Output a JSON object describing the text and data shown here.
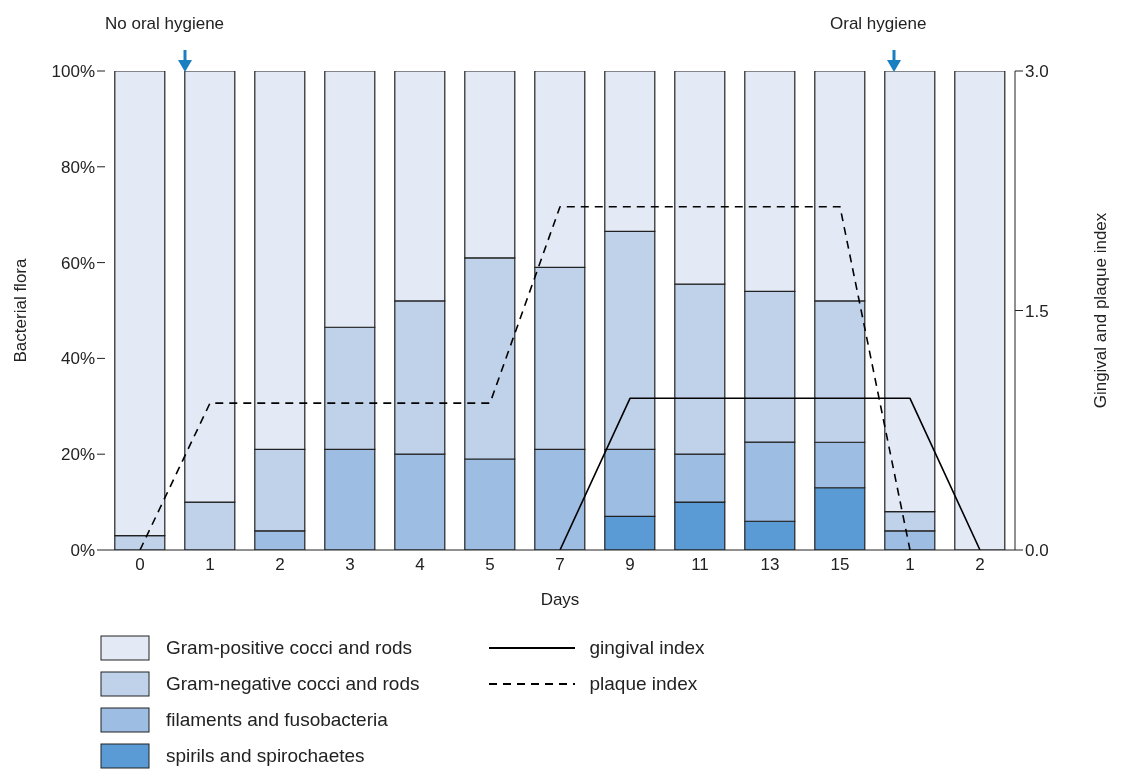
{
  "chart_data": {
    "type": "bar",
    "stacked": true,
    "xlabel": "Days",
    "ylabel": "Bacterial flora",
    "y2label": "Gingival and plaque index",
    "categories": [
      "0",
      "1",
      "2",
      "3",
      "4",
      "5",
      "7",
      "9",
      "11",
      "13",
      "15",
      "1",
      "2"
    ],
    "series": [
      {
        "name": "spirils and spirochaetes",
        "color": "#5b9bd5",
        "values": [
          0,
          0,
          0,
          0,
          0,
          0,
          0,
          7,
          10,
          6,
          13,
          0,
          0
        ]
      },
      {
        "name": "filaments and fusobacteria",
        "color": "#9dbde3",
        "values": [
          0,
          0,
          4,
          21,
          20,
          19,
          21,
          14,
          10,
          16.5,
          9.5,
          4,
          0
        ]
      },
      {
        "name": "Gram-negative cocci and rods",
        "color": "#bfd2ea",
        "values": [
          3,
          10,
          17,
          25.5,
          32,
          42,
          38,
          45.5,
          35.5,
          31.5,
          29.5,
          4,
          0
        ]
      },
      {
        "name": "Gram-positive cocci and rods",
        "color": "#e3eaf6",
        "values": [
          97,
          90,
          79,
          53.5,
          48,
          39,
          41,
          33.5,
          44.5,
          46,
          48,
          92,
          100
        ]
      },
      {
        "name": "gingival index",
        "type": "line",
        "axis": "y2",
        "color": "#000000",
        "line_style": "solid",
        "values": [
          null,
          null,
          null,
          null,
          null,
          null,
          0,
          0.95,
          0.95,
          0.95,
          0.95,
          0.95,
          0
        ]
      },
      {
        "name": "plaque index",
        "type": "line",
        "axis": "y2",
        "color": "#000000",
        "line_style": "dashed",
        "values": [
          0,
          0.92,
          0.92,
          0.92,
          0.92,
          0.92,
          2.15,
          2.15,
          2.15,
          2.15,
          2.15,
          0,
          null
        ]
      }
    ],
    "ylim": [
      0,
      100
    ],
    "yticks": [
      {
        "value": 0,
        "label": "0%"
      },
      {
        "value": 20,
        "label": "20%"
      },
      {
        "value": 40,
        "label": "40%"
      },
      {
        "value": 60,
        "label": "60%"
      },
      {
        "value": 80,
        "label": "80%"
      },
      {
        "value": 100,
        "label": "100%"
      }
    ],
    "y2lim": [
      0,
      3
    ],
    "y2ticks": [
      {
        "value": 0,
        "label": "0.0"
      },
      {
        "value": 1.5,
        "label": "1.5"
      },
      {
        "value": 3,
        "label": "3.0"
      }
    ],
    "marker": "none",
    "legend": "bottom left",
    "annotations": [
      "No oral hygiene",
      "Oral hygiene"
    ]
  }
}
